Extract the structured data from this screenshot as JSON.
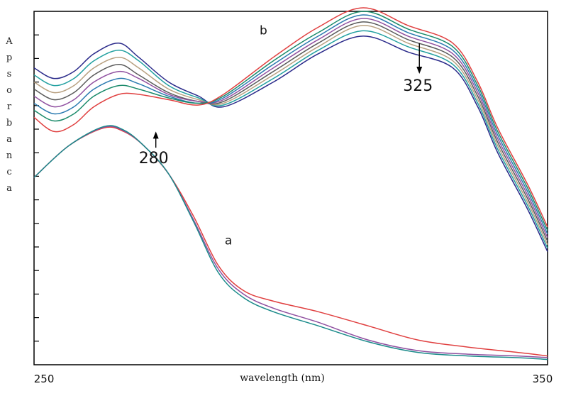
{
  "chart_data": {
    "type": "line",
    "title": "",
    "xlabel": "wavelength (nm)",
    "ylabel": "Apsorbanca",
    "xlim": [
      248,
      351
    ],
    "ylim": [
      0,
      1
    ],
    "xticks": [
      250,
      350
    ],
    "yticks_labeled": false,
    "grid": false,
    "legend": "none",
    "series_b": [
      {
        "color": "#2a2a8a",
        "points": [
          [
            248,
            0.84
          ],
          [
            252,
            0.81
          ],
          [
            256,
            0.83
          ],
          [
            260,
            0.88
          ],
          [
            265,
            0.91
          ],
          [
            269,
            0.87
          ],
          [
            275,
            0.8
          ],
          [
            281,
            0.76
          ],
          [
            286,
            0.73
          ],
          [
            296,
            0.8
          ],
          [
            305,
            0.88
          ],
          [
            314,
            0.93
          ],
          [
            323,
            0.885
          ],
          [
            332,
            0.84
          ],
          [
            337,
            0.73
          ],
          [
            341,
            0.6
          ],
          [
            347,
            0.44
          ],
          [
            351,
            0.32
          ]
        ]
      },
      {
        "color": "#22a0a0",
        "points": [
          [
            248,
            0.82
          ],
          [
            252,
            0.79
          ],
          [
            256,
            0.81
          ],
          [
            260,
            0.86
          ],
          [
            265,
            0.89
          ],
          [
            269,
            0.86
          ],
          [
            275,
            0.79
          ],
          [
            281,
            0.755
          ],
          [
            286,
            0.735
          ],
          [
            296,
            0.81
          ],
          [
            305,
            0.89
          ],
          [
            314,
            0.945
          ],
          [
            323,
            0.9
          ],
          [
            332,
            0.85
          ],
          [
            337,
            0.74
          ],
          [
            341,
            0.61
          ],
          [
            347,
            0.45
          ],
          [
            351,
            0.33
          ]
        ]
      },
      {
        "color": "#b8a080",
        "points": [
          [
            248,
            0.8
          ],
          [
            252,
            0.77
          ],
          [
            256,
            0.79
          ],
          [
            260,
            0.84
          ],
          [
            265,
            0.87
          ],
          [
            269,
            0.84
          ],
          [
            275,
            0.78
          ],
          [
            281,
            0.75
          ],
          [
            286,
            0.74
          ],
          [
            296,
            0.82
          ],
          [
            305,
            0.9
          ],
          [
            314,
            0.96
          ],
          [
            323,
            0.91
          ],
          [
            332,
            0.86
          ],
          [
            337,
            0.75
          ],
          [
            341,
            0.62
          ],
          [
            347,
            0.46
          ],
          [
            351,
            0.34
          ]
        ]
      },
      {
        "color": "#5a5a5a",
        "points": [
          [
            248,
            0.78
          ],
          [
            252,
            0.75
          ],
          [
            256,
            0.77
          ],
          [
            260,
            0.82
          ],
          [
            265,
            0.85
          ],
          [
            269,
            0.82
          ],
          [
            275,
            0.77
          ],
          [
            281,
            0.745
          ],
          [
            286,
            0.745
          ],
          [
            296,
            0.83
          ],
          [
            305,
            0.91
          ],
          [
            314,
            0.97
          ],
          [
            323,
            0.92
          ],
          [
            332,
            0.87
          ],
          [
            337,
            0.76
          ],
          [
            341,
            0.63
          ],
          [
            347,
            0.47
          ],
          [
            351,
            0.35
          ]
        ]
      },
      {
        "color": "#9050a0",
        "points": [
          [
            248,
            0.76
          ],
          [
            252,
            0.73
          ],
          [
            256,
            0.75
          ],
          [
            260,
            0.8
          ],
          [
            265,
            0.83
          ],
          [
            269,
            0.81
          ],
          [
            275,
            0.765
          ],
          [
            281,
            0.745
          ],
          [
            286,
            0.75
          ],
          [
            296,
            0.84
          ],
          [
            305,
            0.92
          ],
          [
            314,
            0.98
          ],
          [
            323,
            0.93
          ],
          [
            332,
            0.88
          ],
          [
            337,
            0.77
          ],
          [
            341,
            0.64
          ],
          [
            347,
            0.48
          ],
          [
            351,
            0.36
          ]
        ]
      },
      {
        "color": "#2a7ab0",
        "points": [
          [
            248,
            0.74
          ],
          [
            252,
            0.71
          ],
          [
            256,
            0.73
          ],
          [
            260,
            0.78
          ],
          [
            265,
            0.81
          ],
          [
            269,
            0.795
          ],
          [
            275,
            0.76
          ],
          [
            281,
            0.74
          ],
          [
            286,
            0.755
          ],
          [
            296,
            0.85
          ],
          [
            305,
            0.93
          ],
          [
            314,
            0.99
          ],
          [
            323,
            0.94
          ],
          [
            332,
            0.89
          ],
          [
            337,
            0.78
          ],
          [
            341,
            0.65
          ],
          [
            347,
            0.49
          ],
          [
            351,
            0.37
          ]
        ]
      },
      {
        "color": "#1a8a6a",
        "points": [
          [
            248,
            0.72
          ],
          [
            252,
            0.69
          ],
          [
            256,
            0.71
          ],
          [
            260,
            0.76
          ],
          [
            265,
            0.79
          ],
          [
            269,
            0.78
          ],
          [
            275,
            0.755
          ],
          [
            281,
            0.74
          ],
          [
            286,
            0.76
          ],
          [
            296,
            0.86
          ],
          [
            305,
            0.94
          ],
          [
            314,
            1.0
          ],
          [
            323,
            0.95
          ],
          [
            332,
            0.9
          ],
          [
            337,
            0.79
          ],
          [
            341,
            0.66
          ],
          [
            347,
            0.5
          ],
          [
            351,
            0.38
          ]
        ]
      },
      {
        "color": "#e04040",
        "points": [
          [
            248,
            0.7
          ],
          [
            252,
            0.66
          ],
          [
            256,
            0.68
          ],
          [
            260,
            0.73
          ],
          [
            265,
            0.765
          ],
          [
            269,
            0.765
          ],
          [
            275,
            0.75
          ],
          [
            281,
            0.735
          ],
          [
            286,
            0.765
          ],
          [
            296,
            0.87
          ],
          [
            305,
            0.955
          ],
          [
            314,
            1.01
          ],
          [
            323,
            0.96
          ],
          [
            332,
            0.91
          ],
          [
            337,
            0.8
          ],
          [
            341,
            0.67
          ],
          [
            347,
            0.51
          ],
          [
            351,
            0.39
          ]
        ]
      }
    ],
    "series_a": [
      {
        "color": "#e04040",
        "points": [
          [
            248,
            0.53
          ],
          [
            255,
            0.62
          ],
          [
            262,
            0.67
          ],
          [
            266,
            0.66
          ],
          [
            270,
            0.62
          ],
          [
            275,
            0.54
          ],
          [
            280,
            0.42
          ],
          [
            285,
            0.28
          ],
          [
            290,
            0.21
          ],
          [
            296,
            0.18
          ],
          [
            305,
            0.15
          ],
          [
            315,
            0.11
          ],
          [
            325,
            0.07
          ],
          [
            335,
            0.05
          ],
          [
            345,
            0.035
          ],
          [
            351,
            0.025
          ]
        ]
      },
      {
        "color": "#9050a0",
        "points": [
          [
            248,
            0.53
          ],
          [
            255,
            0.62
          ],
          [
            262,
            0.672
          ],
          [
            266,
            0.662
          ],
          [
            270,
            0.62
          ],
          [
            275,
            0.54
          ],
          [
            280,
            0.41
          ],
          [
            285,
            0.27
          ],
          [
            290,
            0.2
          ],
          [
            296,
            0.16
          ],
          [
            305,
            0.12
          ],
          [
            315,
            0.07
          ],
          [
            325,
            0.04
          ],
          [
            335,
            0.03
          ],
          [
            345,
            0.025
          ],
          [
            351,
            0.02
          ]
        ]
      },
      {
        "color": "#1a8a8a",
        "points": [
          [
            248,
            0.53
          ],
          [
            255,
            0.62
          ],
          [
            262,
            0.674
          ],
          [
            266,
            0.664
          ],
          [
            270,
            0.62
          ],
          [
            275,
            0.54
          ],
          [
            280,
            0.405
          ],
          [
            285,
            0.26
          ],
          [
            290,
            0.19
          ],
          [
            296,
            0.15
          ],
          [
            305,
            0.11
          ],
          [
            315,
            0.065
          ],
          [
            325,
            0.035
          ],
          [
            335,
            0.025
          ],
          [
            345,
            0.02
          ],
          [
            351,
            0.015
          ]
        ]
      }
    ],
    "annotations": [
      {
        "text": "b",
        "x": 294,
        "y": 0.935
      },
      {
        "text": "a",
        "x": 287,
        "y": 0.34
      },
      {
        "text": "280",
        "x": 272,
        "y": 0.57,
        "arrow": "up",
        "arrow_to": 0.66
      },
      {
        "text": "325",
        "x": 325,
        "y": 0.775,
        "arrow": "down",
        "arrow_from": 0.91
      }
    ]
  }
}
